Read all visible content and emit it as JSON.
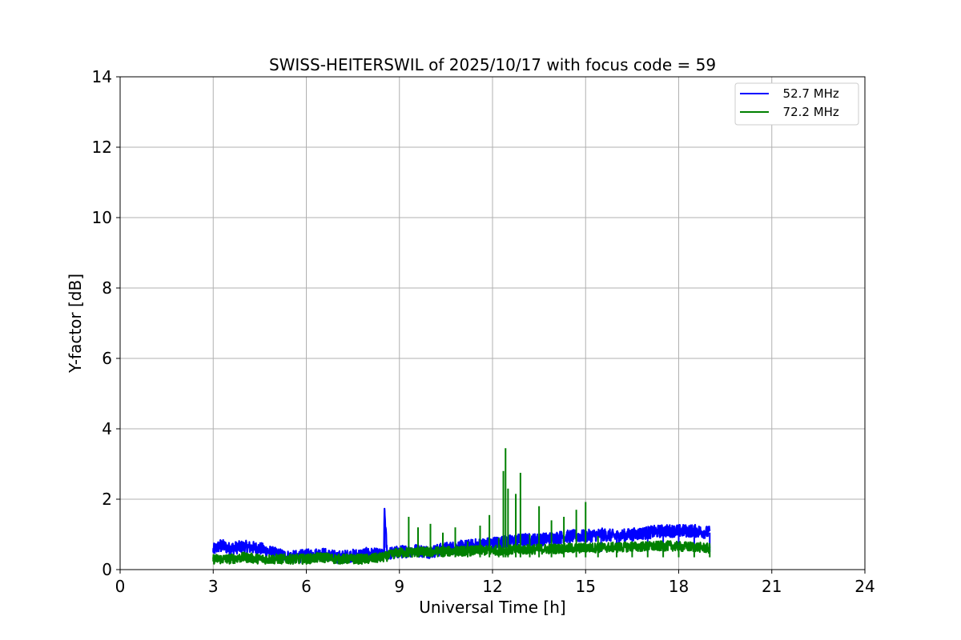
{
  "chart_data": {
    "type": "line",
    "title": "SWISS-HEITERSWIL of 2025/10/17 with focus code = 59",
    "xlabel": "Universal Time [h]",
    "ylabel": "Y-factor [dB]",
    "xlim": [
      0,
      24
    ],
    "ylim": [
      0,
      14
    ],
    "xticks": [
      0,
      3,
      6,
      9,
      12,
      15,
      18,
      21,
      24
    ],
    "yticks": [
      0,
      2,
      4,
      6,
      8,
      10,
      12,
      14
    ],
    "xtick_labels": [
      "0",
      "3",
      "6",
      "9",
      "12",
      "15",
      "18",
      "21",
      "24"
    ],
    "ytick_labels": [
      "0",
      "2",
      "4",
      "6",
      "8",
      "10",
      "12",
      "14"
    ],
    "grid": true,
    "legend_position": "top-right",
    "series": [
      {
        "name": "52.7 MHz",
        "legend_label": "  52.7 MHz",
        "color": "#0000ff",
        "x": [
          3.0,
          3.25,
          3.5,
          4.0,
          4.5,
          5.0,
          5.5,
          6.0,
          6.5,
          7.0,
          7.5,
          8.0,
          8.5,
          8.52,
          8.6,
          9.0,
          9.5,
          10.0,
          10.5,
          11.0,
          11.5,
          12.0,
          12.5,
          13.0,
          13.5,
          14.0,
          14.5,
          15.0,
          15.5,
          16.0,
          16.5,
          17.0,
          17.5,
          18.0,
          18.5,
          19.0
        ],
        "values": [
          0.55,
          0.7,
          0.6,
          0.65,
          0.6,
          0.45,
          0.35,
          0.4,
          0.45,
          0.35,
          0.4,
          0.45,
          0.4,
          1.68,
          0.45,
          0.5,
          0.55,
          0.5,
          0.6,
          0.65,
          0.7,
          0.75,
          0.8,
          0.85,
          0.85,
          0.9,
          0.95,
          0.95,
          1.0,
          0.95,
          1.0,
          1.05,
          1.1,
          1.1,
          1.1,
          1.05
        ]
      },
      {
        "name": "72.2 MHz",
        "legend_label": "  72.2 MHz",
        "color": "#008000",
        "x": [
          3.0,
          3.5,
          4.0,
          4.5,
          5.0,
          5.5,
          6.0,
          6.5,
          7.0,
          7.5,
          8.0,
          8.5,
          9.0,
          9.3,
          9.6,
          10.0,
          10.4,
          10.8,
          11.2,
          11.6,
          11.9,
          12.2,
          12.35,
          12.42,
          12.5,
          12.75,
          12.9,
          13.2,
          13.5,
          13.9,
          14.3,
          14.7,
          15.0,
          15.4,
          16.0,
          16.5,
          17.0,
          17.5,
          18.0,
          18.5,
          19.0
        ],
        "values": [
          0.3,
          0.3,
          0.35,
          0.3,
          0.3,
          0.3,
          0.3,
          0.35,
          0.3,
          0.3,
          0.3,
          0.35,
          0.5,
          1.5,
          1.2,
          1.3,
          1.05,
          1.2,
          0.8,
          1.25,
          1.55,
          0.9,
          2.8,
          3.45,
          2.3,
          2.15,
          2.75,
          1.0,
          1.8,
          1.4,
          1.5,
          1.7,
          1.92,
          0.95,
          0.75,
          0.8,
          0.8,
          0.7,
          0.65,
          0.65,
          0.6
        ]
      }
    ]
  }
}
